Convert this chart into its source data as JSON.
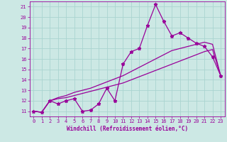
{
  "title": "",
  "xlabel": "Windchill (Refroidissement éolien,°C)",
  "background_color": "#cce8e4",
  "grid_color": "#aad4d0",
  "line_color": "#990099",
  "xlim": [
    -0.5,
    23.5
  ],
  "ylim": [
    10.5,
    21.5
  ],
  "xticks": [
    0,
    1,
    2,
    3,
    4,
    5,
    6,
    7,
    8,
    9,
    10,
    11,
    12,
    13,
    14,
    15,
    16,
    17,
    18,
    19,
    20,
    21,
    22,
    23
  ],
  "yticks": [
    11,
    12,
    13,
    14,
    15,
    16,
    17,
    18,
    19,
    20,
    21
  ],
  "hours": [
    0,
    1,
    2,
    3,
    4,
    5,
    6,
    7,
    8,
    9,
    10,
    11,
    12,
    13,
    14,
    15,
    16,
    17,
    18,
    19,
    20,
    21,
    22,
    23
  ],
  "line1": [
    11.0,
    10.9,
    12.0,
    11.7,
    12.0,
    12.2,
    11.0,
    11.1,
    11.7,
    13.2,
    12.0,
    15.5,
    16.7,
    17.0,
    19.2,
    21.2,
    19.6,
    18.2,
    18.5,
    18.0,
    17.5,
    17.2,
    16.2,
    14.4
  ],
  "line2": [
    11.0,
    10.9,
    12.0,
    12.3,
    12.5,
    12.8,
    13.0,
    13.2,
    13.5,
    13.8,
    14.1,
    14.4,
    14.8,
    15.2,
    15.6,
    16.0,
    16.4,
    16.8,
    17.0,
    17.2,
    17.4,
    17.6,
    17.4,
    14.4
  ],
  "line3": [
    11.0,
    10.9,
    12.0,
    12.2,
    12.3,
    12.5,
    12.7,
    12.9,
    13.1,
    13.3,
    13.5,
    13.7,
    14.0,
    14.3,
    14.6,
    14.9,
    15.2,
    15.5,
    15.8,
    16.1,
    16.4,
    16.7,
    16.9,
    14.4
  ],
  "xlabel_fontsize": 5.5,
  "tick_fontsize": 5.0,
  "line_width": 0.9,
  "marker_size": 3.5
}
